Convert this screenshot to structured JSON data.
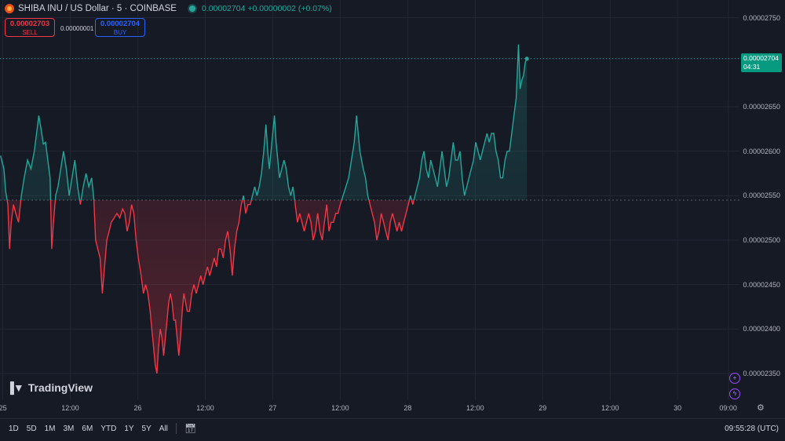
{
  "header": {
    "symbol_title": "SHIBA INU / US Dollar · 5 · COINBASE",
    "price_change": "0.00002704 +0.00000002 (+0.07%)"
  },
  "trade": {
    "sell_price": "0.00002703",
    "sell_label": "SELL",
    "spread": "0.00000001",
    "buy_price": "0.00002704",
    "buy_label": "BUY"
  },
  "current_price_label": {
    "price": "0.00002704",
    "countdown": "04:31"
  },
  "watermark": "TradingView",
  "timeframes": [
    "1D",
    "5D",
    "1M",
    "3M",
    "6M",
    "YTD",
    "1Y",
    "5Y",
    "All"
  ],
  "clock": "09:55:28 (UTC)",
  "colors": {
    "up": "#26a69a",
    "down": "#f23645",
    "background": "#161a25",
    "price_tag": "#089981"
  },
  "icons": {
    "calendar": "calendar-range-icon",
    "settings": "gear-icon",
    "logo": "shiba-inu-logo-icon"
  },
  "chart_data": {
    "type": "area",
    "baseline": 2.545e-05,
    "last_price": 2.704e-05,
    "y_ticks": [
      2.75e-05,
      2.65e-05,
      2.6e-05,
      2.55e-05,
      2.5e-05,
      2.45e-05,
      2.4e-05,
      2.35e-05
    ],
    "y_tick_labels": [
      "0.00002750",
      "0.00002650",
      "0.00002600",
      "0.00002550",
      "0.00002500",
      "0.00002450",
      "0.00002400",
      "0.00002350"
    ],
    "x_tick_labels": [
      "25",
      "12:00",
      "26",
      "12:00",
      "27",
      "12:00",
      "28",
      "12:00",
      "29",
      "12:00",
      "30",
      "09:00"
    ],
    "x_tick_hours": [
      0,
      12,
      24,
      36,
      48,
      60,
      72,
      84,
      96,
      108,
      120,
      129
    ],
    "ylim": [
      2.32e-05,
      2.77e-05
    ],
    "xlim": [
      -0.5,
      131
    ],
    "x_unit": "hours since 25 00:00 UTC",
    "points": [
      [
        -0.4,
        2.595e-05
      ],
      [
        0.2,
        2.58e-05
      ],
      [
        0.5,
        2.555e-05
      ],
      [
        0.9,
        2.54e-05
      ],
      [
        1.2,
        2.49e-05
      ],
      [
        1.5,
        2.52e-05
      ],
      [
        1.9,
        2.54e-05
      ],
      [
        2.3,
        2.53e-05
      ],
      [
        2.8,
        2.52e-05
      ],
      [
        3.3,
        2.55e-05
      ],
      [
        3.8,
        2.57e-05
      ],
      [
        4.4,
        2.59e-05
      ],
      [
        5.0,
        2.58e-05
      ],
      [
        5.6,
        2.6e-05
      ],
      [
        6.0,
        2.62e-05
      ],
      [
        6.4,
        2.64e-05
      ],
      [
        6.8,
        2.625e-05
      ],
      [
        7.2,
        2.608e-05
      ],
      [
        7.6,
        2.61e-05
      ],
      [
        8.0,
        2.59e-05
      ],
      [
        8.4,
        2.57e-05
      ],
      [
        8.7,
        2.49e-05
      ],
      [
        9.0,
        2.52e-05
      ],
      [
        9.4,
        2.55e-05
      ],
      [
        9.8,
        2.56e-05
      ],
      [
        10.3,
        2.58e-05
      ],
      [
        10.8,
        2.6e-05
      ],
      [
        11.3,
        2.58e-05
      ],
      [
        11.8,
        2.55e-05
      ],
      [
        12.3,
        2.57e-05
      ],
      [
        12.8,
        2.59e-05
      ],
      [
        13.3,
        2.56e-05
      ],
      [
        13.8,
        2.54e-05
      ],
      [
        14.3,
        2.56e-05
      ],
      [
        14.8,
        2.575e-05
      ],
      [
        15.3,
        2.56e-05
      ],
      [
        15.8,
        2.57e-05
      ],
      [
        16.2,
        2.545e-05
      ],
      [
        16.5,
        2.5e-05
      ],
      [
        16.9,
        2.49e-05
      ],
      [
        17.3,
        2.48e-05
      ],
      [
        17.7,
        2.44e-05
      ],
      [
        18.1,
        2.47e-05
      ],
      [
        18.5,
        2.5e-05
      ],
      [
        18.9,
        2.51e-05
      ],
      [
        19.3,
        2.52e-05
      ],
      [
        19.8,
        2.525e-05
      ],
      [
        20.3,
        2.53e-05
      ],
      [
        20.8,
        2.525e-05
      ],
      [
        21.3,
        2.535e-05
      ],
      [
        21.7,
        2.53e-05
      ],
      [
        22.1,
        2.51e-05
      ],
      [
        22.5,
        2.52e-05
      ],
      [
        22.9,
        2.54e-05
      ],
      [
        23.3,
        2.53e-05
      ],
      [
        23.7,
        2.5e-05
      ],
      [
        24.1,
        2.48e-05
      ],
      [
        24.6,
        2.46e-05
      ],
      [
        25.0,
        2.44e-05
      ],
      [
        25.4,
        2.45e-05
      ],
      [
        25.8,
        2.44e-05
      ],
      [
        26.2,
        2.42e-05
      ],
      [
        26.5,
        2.4e-05
      ],
      [
        26.8,
        2.38e-05
      ],
      [
        27.1,
        2.36e-05
      ],
      [
        27.4,
        2.35e-05
      ],
      [
        27.7,
        2.38e-05
      ],
      [
        28.0,
        2.4e-05
      ],
      [
        28.3,
        2.39e-05
      ],
      [
        28.6,
        2.37e-05
      ],
      [
        28.9,
        2.39e-05
      ],
      [
        29.2,
        2.41e-05
      ],
      [
        29.5,
        2.43e-05
      ],
      [
        29.8,
        2.44e-05
      ],
      [
        30.1,
        2.43e-05
      ],
      [
        30.4,
        2.41e-05
      ],
      [
        30.7,
        2.41e-05
      ],
      [
        31.0,
        2.39e-05
      ],
      [
        31.3,
        2.37e-05
      ],
      [
        31.6,
        2.39e-05
      ],
      [
        31.9,
        2.42e-05
      ],
      [
        32.2,
        2.44e-05
      ],
      [
        32.5,
        2.43e-05
      ],
      [
        32.8,
        2.42e-05
      ],
      [
        33.2,
        2.42e-05
      ],
      [
        33.6,
        2.44e-05
      ],
      [
        34.0,
        2.45e-05
      ],
      [
        34.4,
        2.44e-05
      ],
      [
        34.8,
        2.45e-05
      ],
      [
        35.2,
        2.46e-05
      ],
      [
        35.6,
        2.45e-05
      ],
      [
        36.0,
        2.46e-05
      ],
      [
        36.4,
        2.47e-05
      ],
      [
        36.8,
        2.46e-05
      ],
      [
        37.2,
        2.47e-05
      ],
      [
        37.6,
        2.48e-05
      ],
      [
        38.0,
        2.47e-05
      ],
      [
        38.4,
        2.49e-05
      ],
      [
        38.8,
        2.49e-05
      ],
      [
        39.2,
        2.48e-05
      ],
      [
        39.6,
        2.5e-05
      ],
      [
        40.0,
        2.51e-05
      ],
      [
        40.4,
        2.49e-05
      ],
      [
        40.8,
        2.46e-05
      ],
      [
        41.2,
        2.49e-05
      ],
      [
        41.6,
        2.51e-05
      ],
      [
        42.0,
        2.52e-05
      ],
      [
        42.4,
        2.54e-05
      ],
      [
        42.8,
        2.55e-05
      ],
      [
        43.2,
        2.53e-05
      ],
      [
        43.6,
        2.54e-05
      ],
      [
        44.0,
        2.54e-05
      ],
      [
        44.4,
        2.55e-05
      ],
      [
        44.8,
        2.56e-05
      ],
      [
        45.2,
        2.55e-05
      ],
      [
        45.6,
        2.56e-05
      ],
      [
        46.0,
        2.575e-05
      ],
      [
        46.4,
        2.6e-05
      ],
      [
        46.8,
        2.63e-05
      ],
      [
        47.1,
        2.6e-05
      ],
      [
        47.4,
        2.58e-05
      ],
      [
        47.7,
        2.6e-05
      ],
      [
        48.0,
        2.62e-05
      ],
      [
        48.3,
        2.64e-05
      ],
      [
        48.6,
        2.61e-05
      ],
      [
        48.9,
        2.59e-05
      ],
      [
        49.2,
        2.57e-05
      ],
      [
        49.6,
        2.58e-05
      ],
      [
        50.0,
        2.59e-05
      ],
      [
        50.4,
        2.58e-05
      ],
      [
        50.8,
        2.56e-05
      ],
      [
        51.2,
        2.55e-05
      ],
      [
        51.6,
        2.56e-05
      ],
      [
        52.0,
        2.54e-05
      ],
      [
        52.4,
        2.52e-05
      ],
      [
        52.8,
        2.53e-05
      ],
      [
        53.2,
        2.52e-05
      ],
      [
        53.6,
        2.51e-05
      ],
      [
        54.0,
        2.52e-05
      ],
      [
        54.4,
        2.53e-05
      ],
      [
        54.8,
        2.52e-05
      ],
      [
        55.2,
        2.5e-05
      ],
      [
        55.6,
        2.51e-05
      ],
      [
        56.0,
        2.53e-05
      ],
      [
        56.4,
        2.51e-05
      ],
      [
        56.8,
        2.5e-05
      ],
      [
        57.2,
        2.52e-05
      ],
      [
        57.6,
        2.54e-05
      ],
      [
        58.0,
        2.51e-05
      ],
      [
        58.4,
        2.52e-05
      ],
      [
        58.8,
        2.52e-05
      ],
      [
        59.2,
        2.53e-05
      ],
      [
        59.6,
        2.53e-05
      ],
      [
        60.0,
        2.54e-05
      ],
      [
        60.5,
        2.55e-05
      ],
      [
        61.0,
        2.56e-05
      ],
      [
        61.5,
        2.57e-05
      ],
      [
        62.0,
        2.59e-05
      ],
      [
        62.5,
        2.61e-05
      ],
      [
        62.9,
        2.64e-05
      ],
      [
        63.2,
        2.62e-05
      ],
      [
        63.5,
        2.6e-05
      ],
      [
        63.8,
        2.59e-05
      ],
      [
        64.1,
        2.58e-05
      ],
      [
        64.5,
        2.57e-05
      ],
      [
        64.9,
        2.55e-05
      ],
      [
        65.3,
        2.54e-05
      ],
      [
        65.7,
        2.53e-05
      ],
      [
        66.1,
        2.52e-05
      ],
      [
        66.5,
        2.5e-05
      ],
      [
        66.9,
        2.51e-05
      ],
      [
        67.3,
        2.53e-05
      ],
      [
        67.7,
        2.52e-05
      ],
      [
        68.1,
        2.51e-05
      ],
      [
        68.5,
        2.5e-05
      ],
      [
        68.9,
        2.52e-05
      ],
      [
        69.3,
        2.53e-05
      ],
      [
        69.7,
        2.52e-05
      ],
      [
        70.1,
        2.51e-05
      ],
      [
        70.5,
        2.52e-05
      ],
      [
        70.9,
        2.51e-05
      ],
      [
        71.3,
        2.52e-05
      ],
      [
        71.7,
        2.53e-05
      ],
      [
        72.1,
        2.54e-05
      ],
      [
        72.5,
        2.55e-05
      ],
      [
        72.9,
        2.54e-05
      ],
      [
        73.3,
        2.55e-05
      ],
      [
        73.7,
        2.56e-05
      ],
      [
        74.1,
        2.57e-05
      ],
      [
        74.5,
        2.59e-05
      ],
      [
        74.9,
        2.6e-05
      ],
      [
        75.3,
        2.58e-05
      ],
      [
        75.7,
        2.57e-05
      ],
      [
        76.1,
        2.59e-05
      ],
      [
        76.5,
        2.58e-05
      ],
      [
        76.9,
        2.57e-05
      ],
      [
        77.3,
        2.56e-05
      ],
      [
        77.7,
        2.58e-05
      ],
      [
        78.1,
        2.6e-05
      ],
      [
        78.5,
        2.58e-05
      ],
      [
        78.9,
        2.56e-05
      ],
      [
        79.3,
        2.57e-05
      ],
      [
        79.7,
        2.59e-05
      ],
      [
        80.1,
        2.61e-05
      ],
      [
        80.5,
        2.59e-05
      ],
      [
        80.9,
        2.59e-05
      ],
      [
        81.3,
        2.6e-05
      ],
      [
        81.7,
        2.57e-05
      ],
      [
        82.1,
        2.55e-05
      ],
      [
        82.5,
        2.56e-05
      ],
      [
        82.9,
        2.57e-05
      ],
      [
        83.3,
        2.58e-05
      ],
      [
        83.7,
        2.59e-05
      ],
      [
        84.1,
        2.61e-05
      ],
      [
        84.5,
        2.6e-05
      ],
      [
        84.9,
        2.59e-05
      ],
      [
        85.3,
        2.6e-05
      ],
      [
        85.7,
        2.61e-05
      ],
      [
        86.1,
        2.62e-05
      ],
      [
        86.5,
        2.61e-05
      ],
      [
        86.9,
        2.62e-05
      ],
      [
        87.3,
        2.62e-05
      ],
      [
        87.7,
        2.6e-05
      ],
      [
        88.1,
        2.59e-05
      ],
      [
        88.5,
        2.57e-05
      ],
      [
        88.9,
        2.57e-05
      ],
      [
        89.3,
        2.59e-05
      ],
      [
        89.7,
        2.6e-05
      ],
      [
        90.1,
        2.6e-05
      ],
      [
        90.5,
        2.62e-05
      ],
      [
        90.9,
        2.64e-05
      ],
      [
        91.3,
        2.66e-05
      ],
      [
        91.7,
        2.72e-05
      ],
      [
        92.0,
        2.67e-05
      ],
      [
        92.3,
        2.68e-05
      ],
      [
        92.6,
        2.685e-05
      ],
      [
        92.9,
        2.7e-05
      ],
      [
        93.2,
        2.704e-05
      ]
    ]
  }
}
